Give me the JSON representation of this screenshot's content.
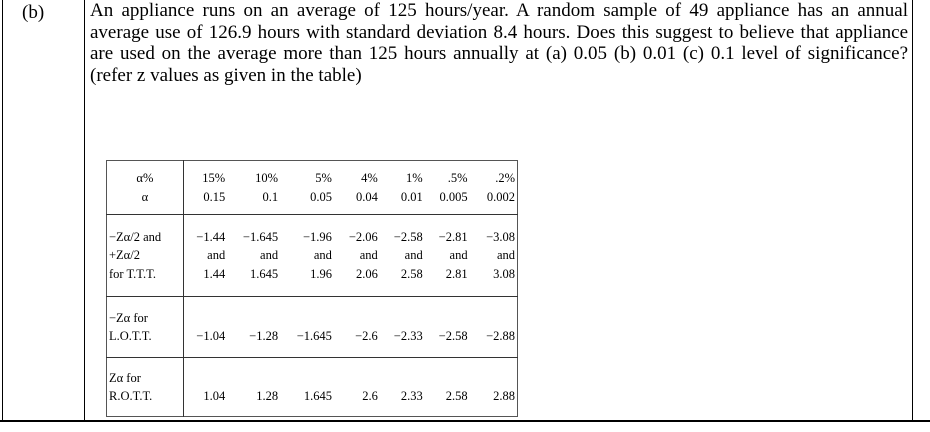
{
  "item_label": "(b)",
  "question": "An appliance runs on an average of 125 hours/year. A random sample of 49 appliance has an annual average use of 126.9 hours with standard deviation 8.4 hours. Does this suggest to believe that appliance are used on the average more than 125 hours annually at  (a) 0.05 (b) 0.01 (c) 0.1 level of significance? (refer z values as given in the table)",
  "table": {
    "rows": [
      {
        "label": [
          "α%",
          "α"
        ],
        "cells": [
          [
            "15%",
            "0.15"
          ],
          [
            "10%",
            "0.1"
          ],
          [
            "5%",
            "0.05"
          ],
          [
            "4%",
            "0.04"
          ],
          [
            "1%",
            "0.01"
          ],
          [
            ".5%",
            "0.005"
          ],
          [
            ".2%",
            "0.002"
          ]
        ]
      },
      {
        "label": [
          "−Zα/2 and",
          "+Zα/2",
          "for T.T.T."
        ],
        "cells": [
          [
            "−1.44",
            "and",
            "1.44"
          ],
          [
            "−1.645",
            "and",
            "1.645"
          ],
          [
            "−1.96",
            "and",
            "1.96"
          ],
          [
            "−2.06",
            "and",
            "2.06"
          ],
          [
            "−2.58",
            "and",
            "2.58"
          ],
          [
            "−2.81",
            "and",
            "2.81"
          ],
          [
            "−3.08",
            "and",
            "3.08"
          ]
        ]
      },
      {
        "label": [
          "−Zα for",
          "L.O.T.T."
        ],
        "cells": [
          [
            "",
            "−1.04"
          ],
          [
            "",
            "−1.28"
          ],
          [
            "",
            "−1.645"
          ],
          [
            "",
            "−2.6"
          ],
          [
            "",
            "−2.33"
          ],
          [
            "",
            "−2.58"
          ],
          [
            "",
            "−2.88"
          ]
        ]
      },
      {
        "label": [
          "Zα for",
          "R.O.T.T."
        ],
        "cells": [
          [
            "",
            "1.04"
          ],
          [
            "",
            "1.28"
          ],
          [
            "",
            "1.645"
          ],
          [
            "",
            "2.6"
          ],
          [
            "",
            "2.33"
          ],
          [
            "",
            "2.58"
          ],
          [
            "",
            "2.88"
          ]
        ]
      }
    ]
  }
}
